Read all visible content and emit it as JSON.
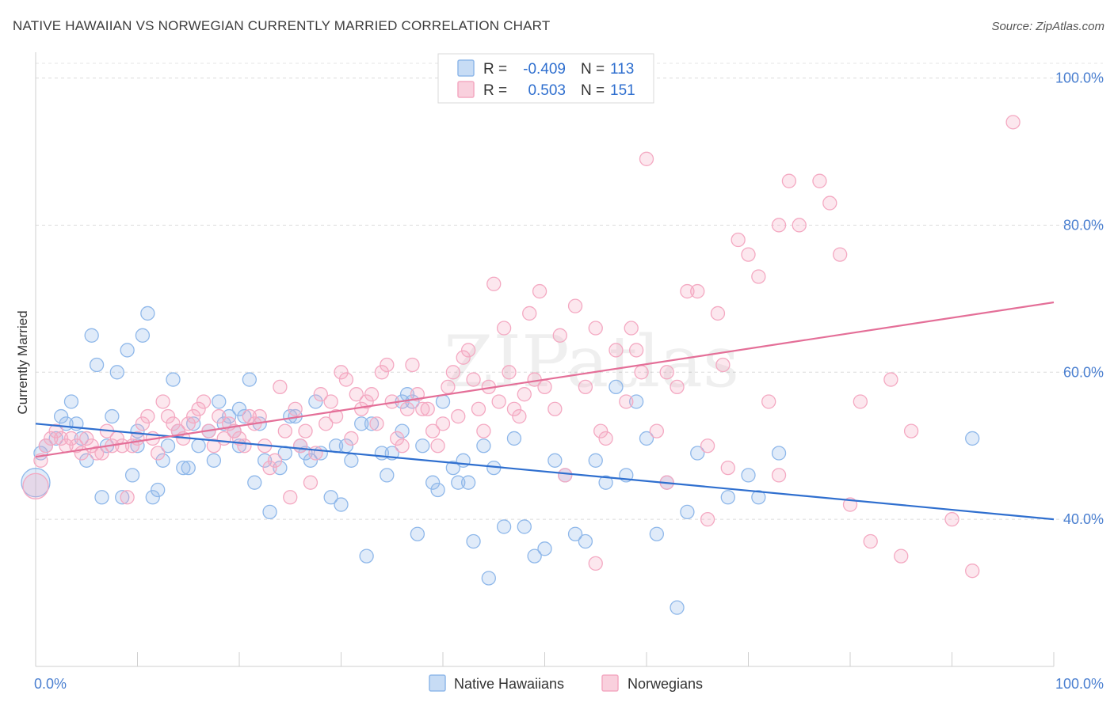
{
  "title": "NATIVE HAWAIIAN VS NORWEGIAN CURRENTLY MARRIED CORRELATION CHART",
  "source": "Source: ZipAtlas.com",
  "watermark": "ZIPatlas",
  "chart_data": {
    "type": "scatter",
    "ylabel": "Currently Married",
    "x_tick_labels": [
      "0.0%",
      "100.0%"
    ],
    "y_tick_labels": [
      "40.0%",
      "60.0%",
      "80.0%",
      "100.0%"
    ],
    "xlim": [
      0,
      100
    ],
    "ylim": [
      20,
      102
    ],
    "grid": "horizontal dashed",
    "legend_placement": "top-center",
    "series": [
      {
        "name": "Native Hawaiians",
        "color": "#8fb8ea",
        "line_color": "#2f6fcf",
        "R": "-0.409",
        "N": "113",
        "trend": {
          "x": [
            0,
            100
          ],
          "y": [
            53.0,
            40.0
          ]
        },
        "points": [
          [
            0.5,
            49
          ],
          [
            1,
            50
          ],
          [
            2,
            51
          ],
          [
            2.5,
            54
          ],
          [
            3,
            53
          ],
          [
            3.5,
            56
          ],
          [
            4,
            53
          ],
          [
            4.5,
            51
          ],
          [
            5,
            48
          ],
          [
            5.5,
            65
          ],
          [
            6,
            61
          ],
          [
            6.5,
            43
          ],
          [
            7,
            50
          ],
          [
            7.5,
            54
          ],
          [
            8,
            60
          ],
          [
            8.5,
            43
          ],
          [
            9,
            63
          ],
          [
            9.5,
            46
          ],
          [
            10,
            50
          ],
          [
            10.5,
            65
          ],
          [
            11,
            68
          ],
          [
            11.5,
            43
          ],
          [
            12,
            44
          ],
          [
            12.5,
            48
          ],
          [
            13,
            50
          ],
          [
            13.5,
            59
          ],
          [
            14,
            52
          ],
          [
            14.5,
            47
          ],
          [
            15,
            47
          ],
          [
            15.5,
            53
          ],
          [
            16,
            50
          ],
          [
            17,
            52
          ],
          [
            17.5,
            48
          ],
          [
            18,
            56
          ],
          [
            18.5,
            53
          ],
          [
            19,
            54
          ],
          [
            19.5,
            52
          ],
          [
            20,
            55
          ],
          [
            20.5,
            54
          ],
          [
            21,
            59
          ],
          [
            21.5,
            45
          ],
          [
            22,
            53
          ],
          [
            22.5,
            48
          ],
          [
            23,
            41
          ],
          [
            24,
            47
          ],
          [
            24.5,
            49
          ],
          [
            25,
            54
          ],
          [
            25.5,
            54
          ],
          [
            26,
            50
          ],
          [
            26.5,
            49
          ],
          [
            27,
            48
          ],
          [
            27.5,
            56
          ],
          [
            28,
            49
          ],
          [
            29,
            43
          ],
          [
            29.5,
            50
          ],
          [
            30,
            42
          ],
          [
            30.5,
            50
          ],
          [
            31,
            48
          ],
          [
            32,
            53
          ],
          [
            32.5,
            35
          ],
          [
            33,
            53
          ],
          [
            34,
            49
          ],
          [
            34.5,
            46
          ],
          [
            35,
            49
          ],
          [
            36,
            56
          ],
          [
            36.5,
            57
          ],
          [
            37,
            56
          ],
          [
            37.5,
            38
          ],
          [
            38,
            50
          ],
          [
            39,
            45
          ],
          [
            39.5,
            44
          ],
          [
            40,
            56
          ],
          [
            41,
            47
          ],
          [
            41.5,
            45
          ],
          [
            42,
            48
          ],
          [
            42.5,
            45
          ],
          [
            43,
            37
          ],
          [
            44,
            50
          ],
          [
            44.5,
            32
          ],
          [
            45,
            47
          ],
          [
            46,
            39
          ],
          [
            47,
            51
          ],
          [
            48,
            39
          ],
          [
            49,
            35
          ],
          [
            50,
            36
          ],
          [
            51,
            48
          ],
          [
            52,
            46
          ],
          [
            53,
            38
          ],
          [
            54,
            37
          ],
          [
            55,
            48
          ],
          [
            56,
            45
          ],
          [
            57,
            58
          ],
          [
            58,
            46
          ],
          [
            59,
            56
          ],
          [
            60,
            51
          ],
          [
            61,
            38
          ],
          [
            62,
            45
          ],
          [
            63,
            28
          ],
          [
            64,
            41
          ],
          [
            65,
            49
          ],
          [
            68,
            43
          ],
          [
            70,
            46
          ],
          [
            71,
            43
          ],
          [
            73,
            49
          ],
          [
            92,
            51
          ],
          [
            36,
            52
          ],
          [
            20,
            50
          ],
          [
            10,
            52
          ]
        ]
      },
      {
        "name": "Norwegians",
        "color": "#f4a9c2",
        "line_color": "#e46f98",
        "R": "0.503",
        "N": "151",
        "trend": {
          "x": [
            0,
            100
          ],
          "y": [
            48.5,
            69.5
          ]
        },
        "points": [
          [
            0.5,
            48
          ],
          [
            1,
            50
          ],
          [
            1.5,
            51
          ],
          [
            2,
            52
          ],
          [
            2.5,
            51
          ],
          [
            3,
            50
          ],
          [
            3.5,
            51
          ],
          [
            4,
            50
          ],
          [
            4.5,
            49
          ],
          [
            5,
            51
          ],
          [
            5.5,
            50
          ],
          [
            6,
            49
          ],
          [
            6.5,
            49
          ],
          [
            7,
            52
          ],
          [
            7.5,
            50
          ],
          [
            8,
            51
          ],
          [
            8.5,
            50
          ],
          [
            9,
            43
          ],
          [
            9.5,
            50
          ],
          [
            10,
            51
          ],
          [
            10.5,
            53
          ],
          [
            11,
            54
          ],
          [
            11.5,
            51
          ],
          [
            12,
            49
          ],
          [
            12.5,
            56
          ],
          [
            13,
            54
          ],
          [
            13.5,
            53
          ],
          [
            14,
            52
          ],
          [
            14.5,
            51
          ],
          [
            15,
            53
          ],
          [
            15.5,
            54
          ],
          [
            16,
            55
          ],
          [
            16.5,
            56
          ],
          [
            17,
            52
          ],
          [
            17.5,
            50
          ],
          [
            18,
            54
          ],
          [
            18.5,
            51
          ],
          [
            19,
            53
          ],
          [
            19.5,
            52
          ],
          [
            20,
            51
          ],
          [
            20.5,
            50
          ],
          [
            21,
            54
          ],
          [
            21.5,
            53
          ],
          [
            22,
            54
          ],
          [
            22.5,
            50
          ],
          [
            23,
            47
          ],
          [
            23.5,
            48
          ],
          [
            24,
            58
          ],
          [
            24.5,
            52
          ],
          [
            25,
            43
          ],
          [
            25.5,
            55
          ],
          [
            26,
            50
          ],
          [
            26.5,
            52
          ],
          [
            27,
            45
          ],
          [
            27.5,
            49
          ],
          [
            28,
            57
          ],
          [
            28.5,
            53
          ],
          [
            29,
            56
          ],
          [
            29.5,
            54
          ],
          [
            30,
            60
          ],
          [
            30.5,
            59
          ],
          [
            31,
            51
          ],
          [
            31.5,
            57
          ],
          [
            32,
            55
          ],
          [
            32.5,
            56
          ],
          [
            33,
            57
          ],
          [
            33.5,
            53
          ],
          [
            34,
            60
          ],
          [
            34.5,
            61
          ],
          [
            35,
            56
          ],
          [
            35.5,
            51
          ],
          [
            36,
            50
          ],
          [
            36.5,
            55
          ],
          [
            37,
            61
          ],
          [
            37.5,
            57
          ],
          [
            38,
            55
          ],
          [
            38.5,
            55
          ],
          [
            39,
            52
          ],
          [
            39.5,
            50
          ],
          [
            40,
            53
          ],
          [
            40.5,
            58
          ],
          [
            41,
            60
          ],
          [
            41.5,
            54
          ],
          [
            42,
            62
          ],
          [
            42.5,
            63
          ],
          [
            43,
            59
          ],
          [
            43.5,
            55
          ],
          [
            44,
            52
          ],
          [
            44.5,
            58
          ],
          [
            45,
            72
          ],
          [
            45.5,
            56
          ],
          [
            46,
            66
          ],
          [
            46.5,
            60
          ],
          [
            47,
            55
          ],
          [
            47.5,
            54
          ],
          [
            48,
            57
          ],
          [
            48.5,
            68
          ],
          [
            49,
            59
          ],
          [
            49.5,
            71
          ],
          [
            50,
            58
          ],
          [
            51,
            55
          ],
          [
            51.5,
            65
          ],
          [
            52,
            46
          ],
          [
            53,
            69
          ],
          [
            54,
            58
          ],
          [
            55,
            66
          ],
          [
            55.5,
            52
          ],
          [
            56,
            51
          ],
          [
            57,
            63
          ],
          [
            58,
            56
          ],
          [
            58.5,
            66
          ],
          [
            59,
            63
          ],
          [
            59.5,
            60
          ],
          [
            60,
            89
          ],
          [
            61,
            52
          ],
          [
            62,
            60
          ],
          [
            63,
            58
          ],
          [
            64,
            71
          ],
          [
            65,
            71
          ],
          [
            66,
            50
          ],
          [
            67,
            68
          ],
          [
            67.5,
            61
          ],
          [
            68,
            47
          ],
          [
            69,
            78
          ],
          [
            70,
            76
          ],
          [
            71,
            73
          ],
          [
            72,
            56
          ],
          [
            73,
            80
          ],
          [
            74,
            86
          ],
          [
            75,
            80
          ],
          [
            77,
            86
          ],
          [
            78,
            83
          ],
          [
            79,
            76
          ],
          [
            80,
            42
          ],
          [
            81,
            56
          ],
          [
            82,
            37
          ],
          [
            84,
            59
          ],
          [
            85,
            35
          ],
          [
            86,
            52
          ],
          [
            90,
            40
          ],
          [
            92,
            33
          ],
          [
            96,
            94
          ],
          [
            55,
            34
          ],
          [
            62,
            45
          ],
          [
            73,
            46
          ],
          [
            66,
            40
          ]
        ]
      }
    ]
  },
  "legend": {
    "r_label": "R =",
    "n_label": "N =",
    "native_r": "-0.409",
    "native_n": "113",
    "norwegian_r": "0.503",
    "norwegian_n": "151"
  },
  "bottom_legend": {
    "native": "Native Hawaiians",
    "norwegian": "Norwegians"
  }
}
